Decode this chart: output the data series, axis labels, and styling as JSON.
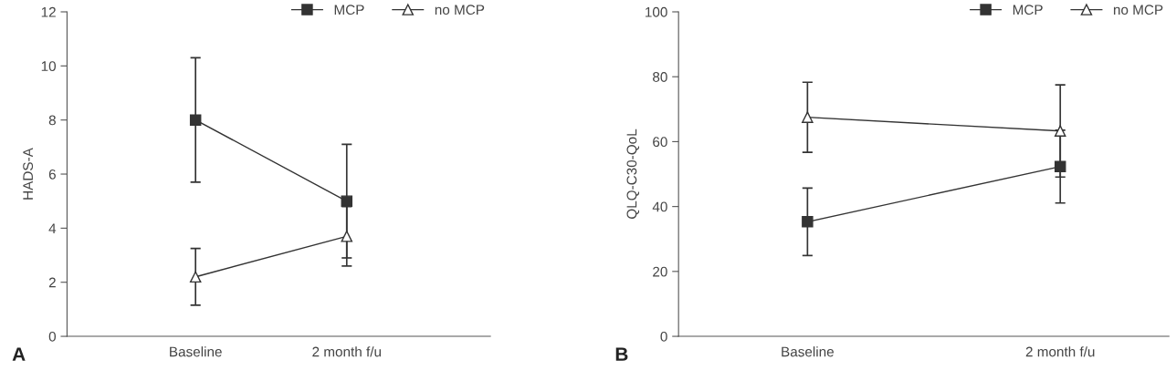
{
  "chart_data": [
    {
      "type": "line",
      "ylabel": "HADS-A",
      "categories": [
        "Baseline",
        "2 month f/u"
      ],
      "ylim": [
        0,
        12
      ],
      "yticks": [
        0,
        2,
        4,
        6,
        8,
        10,
        12
      ],
      "grid": false,
      "legend": "top right",
      "annotations": [
        "A"
      ],
      "series": [
        {
          "name": "MCP",
          "color": "#333333",
          "marker": "square",
          "values": [
            8.0,
            5.0
          ],
          "errors": [
            2.3,
            2.1
          ]
        },
        {
          "name": "no MCP",
          "color": "#333333",
          "marker": "triangle",
          "values": [
            2.2,
            3.7
          ],
          "errors": [
            1.05,
            1.1
          ]
        }
      ]
    },
    {
      "type": "line",
      "ylabel": "QLQ-C30-QoL",
      "categories": [
        "Baseline",
        "2 month f/u"
      ],
      "ylim": [
        0,
        100
      ],
      "yticks": [
        0,
        20,
        40,
        60,
        80,
        100
      ],
      "grid": false,
      "legend": "top right",
      "annotations": [
        "B"
      ],
      "series": [
        {
          "name": "MCP",
          "color": "#333333",
          "marker": "square",
          "values": [
            35.3,
            52.3
          ],
          "errors": [
            10.4,
            11.2
          ]
        },
        {
          "name": "no MCP",
          "color": "#333333",
          "marker": "triangle",
          "values": [
            67.5,
            63.3
          ],
          "errors": [
            10.8,
            14.2
          ]
        }
      ]
    }
  ]
}
